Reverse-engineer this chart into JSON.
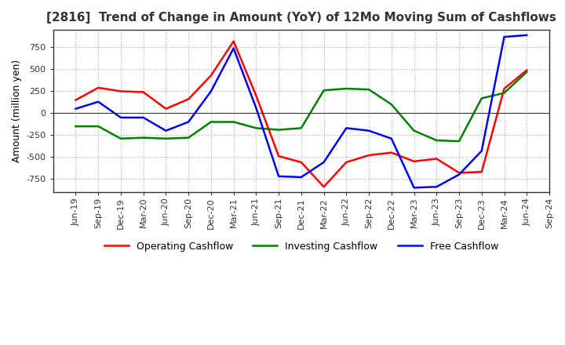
{
  "title": "[2816]  Trend of Change in Amount (YoY) of 12Mo Moving Sum of Cashflows",
  "ylabel": "Amount (million yen)",
  "ylim": [
    -900,
    950
  ],
  "yticks": [
    -750,
    -500,
    -250,
    0,
    250,
    500,
    750
  ],
  "x_labels": [
    "Jun-19",
    "Sep-19",
    "Dec-19",
    "Mar-20",
    "Jun-20",
    "Sep-20",
    "Dec-20",
    "Mar-21",
    "Jun-21",
    "Sep-21",
    "Dec-21",
    "Mar-22",
    "Jun-22",
    "Sep-22",
    "Dec-22",
    "Mar-23",
    "Jun-23",
    "Sep-23",
    "Dec-23",
    "Mar-24",
    "Jun-24",
    "Sep-24"
  ],
  "operating": [
    150,
    290,
    250,
    240,
    50,
    160,
    430,
    820,
    200,
    -490,
    -560,
    -840,
    -560,
    -480,
    -450,
    -550,
    -520,
    -680,
    -670,
    280,
    490,
    null
  ],
  "investing": [
    -150,
    -150,
    -290,
    -280,
    -290,
    -280,
    -100,
    -100,
    -170,
    -190,
    -170,
    260,
    280,
    270,
    100,
    -200,
    -310,
    -320,
    170,
    230,
    470,
    null
  ],
  "free": [
    50,
    130,
    -50,
    -50,
    -200,
    -100,
    250,
    740,
    60,
    -720,
    -730,
    -560,
    -170,
    -200,
    -290,
    -850,
    -840,
    -700,
    -430,
    870,
    890,
    null
  ],
  "operating_color": "#ff0000",
  "investing_color": "#008000",
  "free_color": "#0000ff",
  "bg_color": "#ffffff",
  "grid_color": "#aaaaaa"
}
